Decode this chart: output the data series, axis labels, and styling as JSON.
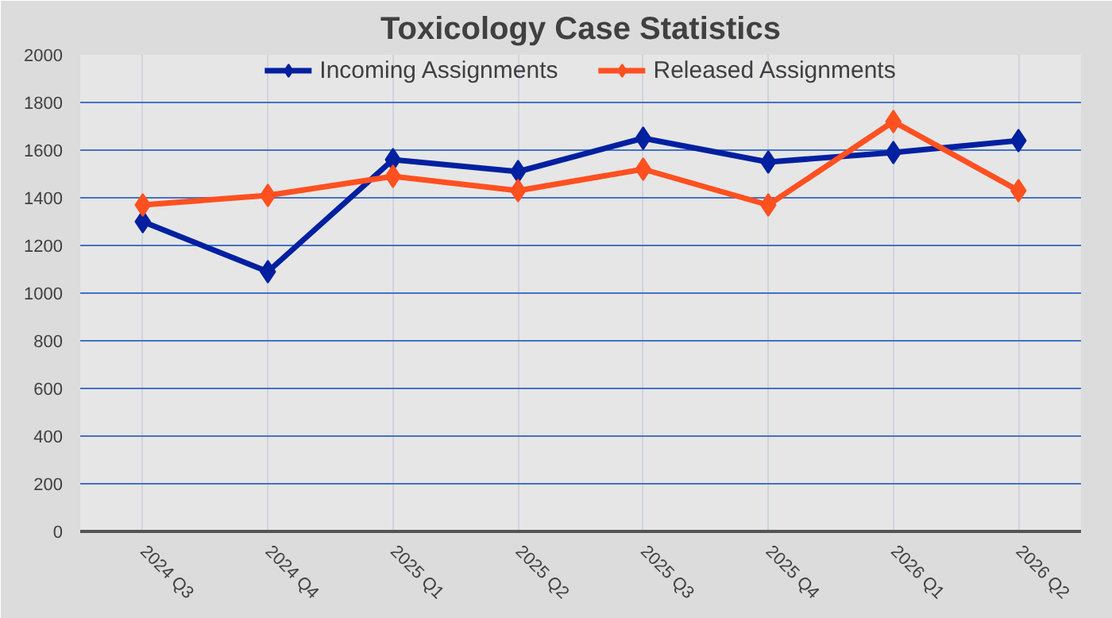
{
  "chart_data": {
    "type": "line",
    "title": "Toxicology Case Statistics",
    "categories": [
      "2024 Q3",
      "2024 Q4",
      "2025 Q1",
      "2025 Q2",
      "2025 Q3",
      "2025 Q4",
      "2026 Q1",
      "2026 Q2"
    ],
    "series": [
      {
        "name": "Incoming Assignments",
        "color": "#0020a0",
        "values": [
          1300,
          1090,
          1560,
          1510,
          1650,
          1550,
          1590,
          1640
        ]
      },
      {
        "name": "Released Assignments",
        "color": "#ff5020",
        "values": [
          1370,
          1410,
          1490,
          1430,
          1520,
          1370,
          1720,
          1430
        ]
      }
    ],
    "ylim": [
      0,
      2000
    ],
    "yticks": [
      0,
      200,
      400,
      600,
      800,
      1000,
      1200,
      1400,
      1600,
      1800,
      2000
    ],
    "grid": true,
    "legend": "top",
    "marker": "diamond",
    "line_style": "solid"
  }
}
